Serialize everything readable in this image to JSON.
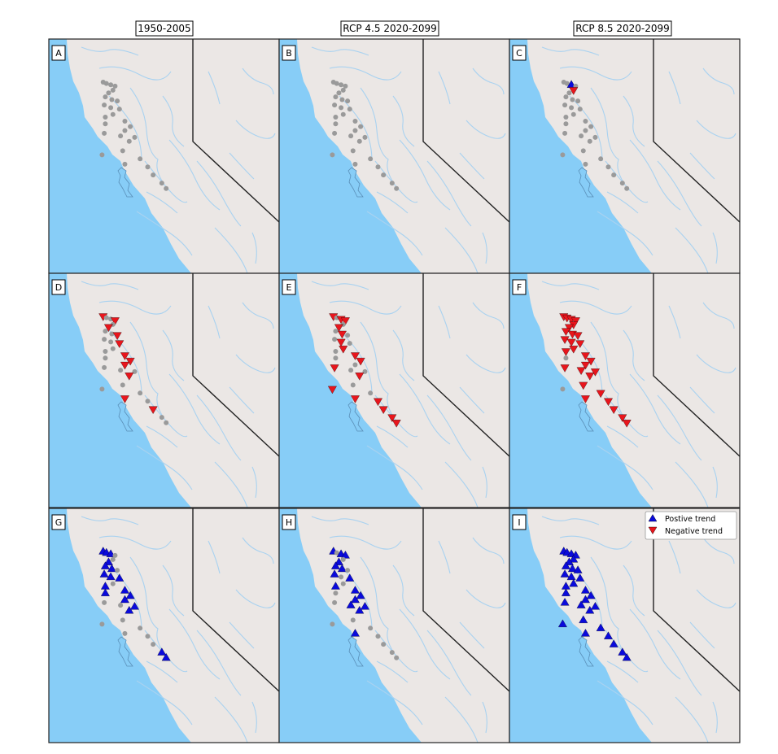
{
  "colors": {
    "ocean": "#87cdf7",
    "land": "#ebe7e5",
    "river": "#a9d2f0",
    "station": "#9a9a9a",
    "positive": "#0a0adb",
    "negative": "#e8151c",
    "frame": "#222222"
  },
  "columns": [
    "1950-2005",
    "RCP 4.5 2020-2099",
    "RCP 8.5 2020-2099"
  ],
  "panels": [
    "A",
    "B",
    "C",
    "D",
    "E",
    "F",
    "G",
    "H",
    "I"
  ],
  "legend": {
    "positive": "Postive trend",
    "negative": "Negative trend"
  },
  "stations": [
    {
      "id": "s01",
      "lon": -122.3,
      "lat": 40.4
    },
    {
      "id": "s02",
      "lon": -122.15,
      "lat": 40.35
    },
    {
      "id": "s03",
      "lon": -121.95,
      "lat": 40.3
    },
    {
      "id": "s04",
      "lon": -121.75,
      "lat": 40.25
    },
    {
      "id": "s05",
      "lon": -121.85,
      "lat": 40.1
    },
    {
      "id": "s06",
      "lon": -122.05,
      "lat": 40.0
    },
    {
      "id": "s07",
      "lon": -122.2,
      "lat": 39.85
    },
    {
      "id": "s08",
      "lon": -121.9,
      "lat": 39.75
    },
    {
      "id": "s09",
      "lon": -121.65,
      "lat": 39.7
    },
    {
      "id": "s10",
      "lon": -122.25,
      "lat": 39.55
    },
    {
      "id": "s11",
      "lon": -121.95,
      "lat": 39.45
    },
    {
      "id": "s12",
      "lon": -121.55,
      "lat": 39.4
    },
    {
      "id": "s13",
      "lon": -121.85,
      "lat": 39.2
    },
    {
      "id": "s14",
      "lon": -122.2,
      "lat": 39.1
    },
    {
      "id": "s15",
      "lon": -121.3,
      "lat": 38.95
    },
    {
      "id": "s16",
      "lon": -122.2,
      "lat": 38.85
    },
    {
      "id": "s17",
      "lon": -121.05,
      "lat": 38.75
    },
    {
      "id": "s18",
      "lon": -121.3,
      "lat": 38.6
    },
    {
      "id": "s19",
      "lon": -122.25,
      "lat": 38.5
    },
    {
      "id": "s20",
      "lon": -121.5,
      "lat": 38.4
    },
    {
      "id": "s21",
      "lon": -120.85,
      "lat": 38.35
    },
    {
      "id": "s22",
      "lon": -121.1,
      "lat": 38.2
    },
    {
      "id": "s23",
      "lon": -121.4,
      "lat": 37.85
    },
    {
      "id": "s24",
      "lon": -122.35,
      "lat": 37.7
    },
    {
      "id": "s25",
      "lon": -120.6,
      "lat": 37.55
    },
    {
      "id": "s26",
      "lon": -121.3,
      "lat": 37.35
    },
    {
      "id": "s27",
      "lon": -120.25,
      "lat": 37.25
    },
    {
      "id": "s28",
      "lon": -120.0,
      "lat": 36.95
    },
    {
      "id": "s29",
      "lon": -119.6,
      "lat": 36.65
    },
    {
      "id": "s30",
      "lon": -119.4,
      "lat": 36.45
    }
  ],
  "trends": {
    "A": {},
    "B": {},
    "C": {
      "s03": "pos",
      "s05": "neg"
    },
    "D": {
      "s01": "neg",
      "s04": "neg",
      "s06": "neg",
      "s09": "neg",
      "s12": "neg",
      "s15": "neg",
      "s17": "neg",
      "s18": "neg",
      "s22": "neg",
      "s26": "neg",
      "s28": "neg"
    },
    "E": {
      "s01": "neg",
      "s03": "neg",
      "s04": "neg",
      "s06": "neg",
      "s08": "neg",
      "s11": "neg",
      "s13": "neg",
      "s15": "neg",
      "s17": "neg",
      "s19": "neg",
      "s22": "neg",
      "s24": "neg",
      "s26": "neg",
      "s27": "neg",
      "s28": "neg",
      "s29": "neg",
      "s30": "neg"
    },
    "F": {
      "s01": "neg",
      "s02": "neg",
      "s03": "neg",
      "s04": "neg",
      "s05": "neg",
      "s06": "neg",
      "s07": "neg",
      "s08": "neg",
      "s09": "neg",
      "s10": "neg",
      "s11": "neg",
      "s12": "neg",
      "s13": "neg",
      "s14": "neg",
      "s15": "neg",
      "s17": "neg",
      "s18": "neg",
      "s19": "neg",
      "s20": "neg",
      "s21": "neg",
      "s22": "neg",
      "s23": "neg",
      "s25": "neg",
      "s26": "neg",
      "s27": "neg",
      "s28": "neg",
      "s29": "neg",
      "s30": "neg"
    },
    "G": {
      "s01": "pos",
      "s02": "pos",
      "s03": "pos",
      "s06": "pos",
      "s07": "pos",
      "s08": "pos",
      "s10": "pos",
      "s11": "pos",
      "s12": "pos",
      "s14": "pos",
      "s15": "pos",
      "s16": "pos",
      "s17": "pos",
      "s18": "pos",
      "s21": "pos",
      "s22": "pos",
      "s29": "pos",
      "s30": "pos"
    },
    "H": {
      "s01": "pos",
      "s03": "pos",
      "s04": "pos",
      "s06": "pos",
      "s07": "pos",
      "s08": "pos",
      "s10": "pos",
      "s12": "pos",
      "s14": "pos",
      "s15": "pos",
      "s17": "pos",
      "s18": "pos",
      "s20": "pos",
      "s21": "pos",
      "s22": "pos",
      "s26": "pos"
    },
    "I": {
      "s01": "pos",
      "s02": "pos",
      "s03": "pos",
      "s04": "pos",
      "s05": "pos",
      "s06": "pos",
      "s07": "pos",
      "s08": "pos",
      "s09": "pos",
      "s10": "pos",
      "s11": "pos",
      "s12": "pos",
      "s13": "pos",
      "s14": "pos",
      "s15": "pos",
      "s16": "pos",
      "s17": "pos",
      "s18": "pos",
      "s19": "pos",
      "s20": "pos",
      "s21": "pos",
      "s22": "pos",
      "s23": "pos",
      "s24": "pos",
      "s25": "pos",
      "s26": "pos",
      "s27": "pos",
      "s28": "pos",
      "s29": "pos",
      "s30": "pos"
    }
  }
}
